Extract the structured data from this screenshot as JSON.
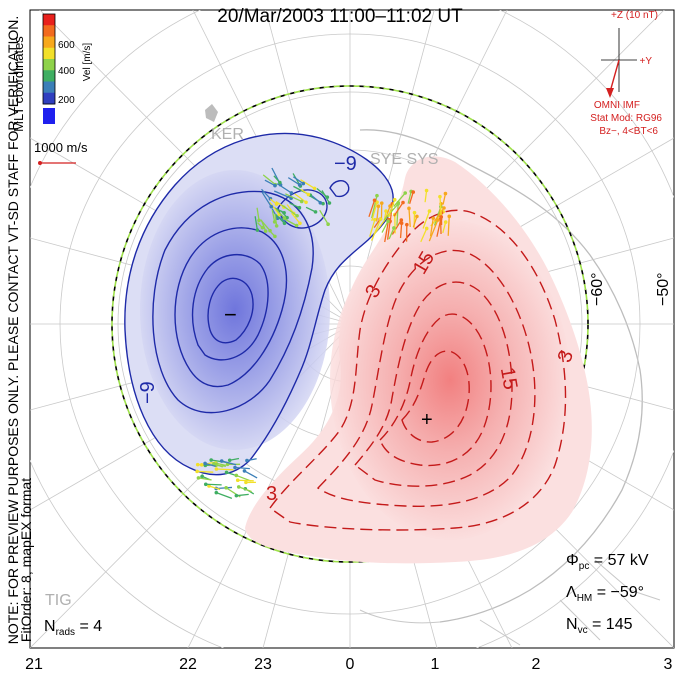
{
  "header": {
    "title": "20/Mar/2003 11:00–11:02 UT"
  },
  "colorbar": {
    "label": "Vel [m/s]",
    "ticks": [
      "600",
      "400",
      "200"
    ],
    "colors": [
      "#e8201c",
      "#f26a1e",
      "#f7a81c",
      "#f2e02a",
      "#8ed24a",
      "#3fae62",
      "#3b7fb8",
      "#2f3fbf",
      "#1f20ee"
    ]
  },
  "reference_vector": {
    "label": "1000 m/s",
    "color": "#d42020"
  },
  "side_notes": {
    "coordinates": "MLT coordinates",
    "preview_note": "NOTE: FOR PREVIEW PURPOSES ONLY. PLEASE CONTACT VT-SD STAFF FOR VERIFICATION.",
    "fit_order": "FitOrder: 8, mapEX format"
  },
  "imf": {
    "z_label": "+Z (10 nT)",
    "y_label": "+Y",
    "source": "OMNI IMF",
    "model": "Stat Mod: RG96",
    "condition": "Bz−, 4<BT<6",
    "color": "#d42020"
  },
  "stations": [
    "KER",
    "SYE SYS",
    "TIG"
  ],
  "latitude_labels": [
    "−60°",
    "−50°"
  ],
  "mlt_labels": [
    "21",
    "22",
    "23",
    "0",
    "1",
    "2",
    "3"
  ],
  "contour_labels": {
    "negative": [
      "−9",
      "−9"
    ],
    "positive": [
      "3",
      "3",
      "3",
      "15",
      "15"
    ]
  },
  "cell_markers": {
    "minimum": "−",
    "maximum": "+"
  },
  "stats": {
    "phi_pc": {
      "symbol": "Φ",
      "sub": "pc",
      "value": "= 57 kV"
    },
    "lambda_hm": {
      "symbol": "Λ",
      "sub": "HM",
      "value": "= −59°"
    },
    "n_vc": {
      "symbol": "N",
      "sub": "vc",
      "value": "= 145"
    },
    "n_rads": {
      "symbol": "N",
      "sub": "rads",
      "value": "= 4"
    }
  }
}
